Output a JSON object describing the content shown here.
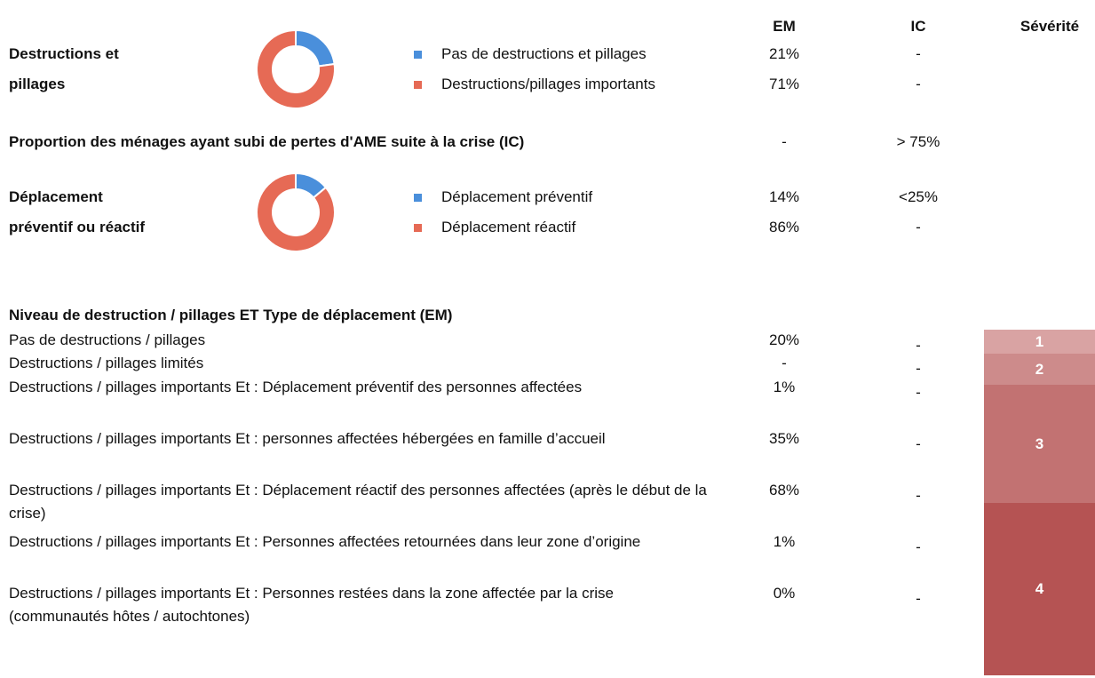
{
  "header": {
    "em": "EM",
    "ic": "IC",
    "severity": "Sévérité"
  },
  "blocks": [
    {
      "label": "Destructions et pillages",
      "chart": {
        "type": "donut",
        "categories": [
          "Pas de destructions et pillages",
          "Destructions/pillages importants"
        ],
        "values": [
          21,
          71
        ],
        "value_labels": [
          "21%",
          "71%"
        ],
        "colors": [
          "#4a8fdb",
          "#e66a55"
        ]
      },
      "ic": [
        "-",
        "-"
      ]
    },
    {
      "label": "Déplacement préventif ou réactif",
      "chart": {
        "type": "donut",
        "categories": [
          "Déplacement préventif",
          "Déplacement réactif"
        ],
        "values": [
          14,
          86
        ],
        "value_labels": [
          "14%",
          "86%"
        ],
        "colors": [
          "#4a8fdb",
          "#e66a55"
        ]
      },
      "ic": [
        "<25%",
        "-"
      ]
    }
  ],
  "proportion": {
    "label": "Proportion des ménages ayant subi de pertes d'AME suite à la crise (IC)",
    "em": "-",
    "ic": "> 75%"
  },
  "table": {
    "title": "Niveau de destruction / pillages ET Type de déplacement (EM)",
    "rows": [
      [
        "Pas de destructions / pillages",
        "20%",
        "-"
      ],
      [
        "Destructions / pillages limités",
        "-",
        "-"
      ],
      [
        "Destructions / pillages importants Et : Déplacement préventif des personnes affectées",
        "1%",
        "-"
      ],
      [
        "Destructions / pillages importants Et : personnes affectées hébergées en famille d’accueil",
        "35%",
        "-"
      ],
      [
        "Destructions / pillages importants Et : Déplacement réactif des personnes affectées (après le début de la crise)",
        "68%",
        "-"
      ],
      [
        "Destructions / pillages importants Et : Personnes affectées retournées dans leur zone d’origine",
        "1%",
        "-"
      ],
      [
        "Destructions / pillages importants Et : Personnes restées dans la zone affectée par la crise (communautés hôtes / autochtones)",
        "0%",
        "-"
      ]
    ],
    "severity": [
      {
        "label": "1",
        "color": "#d9a3a3"
      },
      {
        "label": "2",
        "color": "#cd8b8b"
      },
      {
        "label": "3",
        "color": "#c27272"
      },
      {
        "label": "4",
        "color": "#b55353"
      }
    ]
  }
}
